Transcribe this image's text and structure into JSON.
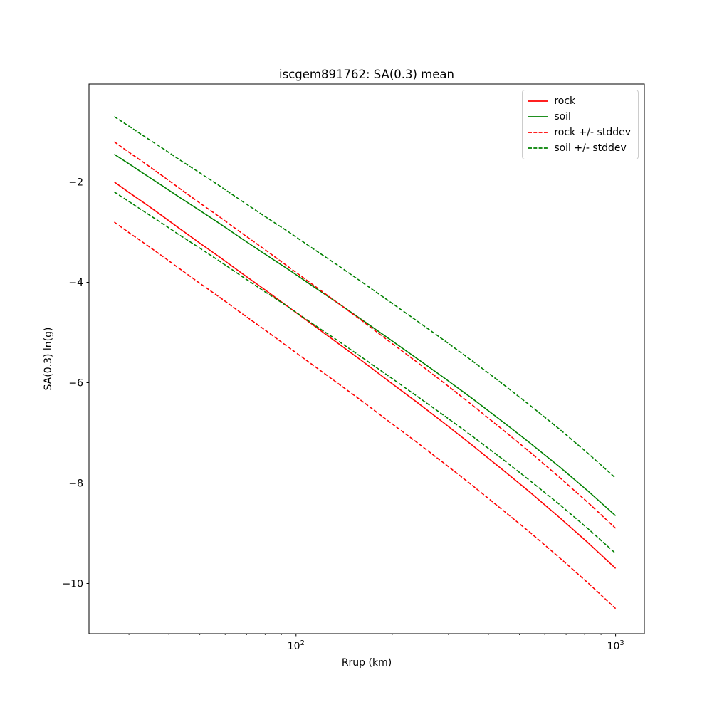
{
  "figure": {
    "title": "iscgem891762: SA(0.3) mean",
    "xlabel": "Rrup (km)",
    "ylabel": "SA(0.3) ln(g)"
  },
  "colors": {
    "rock": "#ff0000",
    "soil": "#008000",
    "axes": "#000000",
    "legend_border": "#cccccc"
  },
  "legend": {
    "items": [
      {
        "label": "rock",
        "color": "#ff0000",
        "dash": "solid"
      },
      {
        "label": "soil",
        "color": "#008000",
        "dash": "solid"
      },
      {
        "label": "rock +/- stddev",
        "color": "#ff0000",
        "dash": "dashed"
      },
      {
        "label": "soil +/- stddev",
        "color": "#008000",
        "dash": "dashed"
      }
    ]
  },
  "chart_data": {
    "type": "line",
    "title": "iscgem891762: SA(0.3) mean",
    "xlabel": "Rrup (km)",
    "ylabel": "SA(0.3) ln(g)",
    "x_scale": "log",
    "y_scale": "linear",
    "grid": false,
    "legend_position": "upper right",
    "xlim": [
      22.5,
      1230
    ],
    "ylim": [
      -11.0,
      -0.05
    ],
    "x": [
      27,
      30,
      34,
      38,
      43,
      50,
      58,
      68,
      80,
      95,
      113,
      135,
      162,
      196,
      238,
      290,
      355,
      436,
      537,
      663,
      820,
      1000
    ],
    "series": [
      {
        "name": "rock-mean",
        "legend_label": "rock",
        "color": "#ff0000",
        "dash": "solid",
        "values": [
          -2.0,
          -2.21,
          -2.45,
          -2.67,
          -2.92,
          -3.22,
          -3.51,
          -3.83,
          -4.15,
          -4.5,
          -4.85,
          -5.21,
          -5.58,
          -5.98,
          -6.38,
          -6.8,
          -7.24,
          -7.7,
          -8.17,
          -8.67,
          -9.19,
          -9.7
        ]
      },
      {
        "name": "soil-mean",
        "legend_label": "soil",
        "color": "#008000",
        "dash": "solid",
        "values": [
          -1.45,
          -1.64,
          -1.87,
          -2.07,
          -2.3,
          -2.57,
          -2.84,
          -3.14,
          -3.44,
          -3.75,
          -4.08,
          -4.41,
          -4.76,
          -5.13,
          -5.51,
          -5.9,
          -6.31,
          -6.74,
          -7.19,
          -7.66,
          -8.16,
          -8.65
        ]
      },
      {
        "name": "rock-plus-stddev",
        "legend_label": "rock +/- stddev",
        "color": "#ff0000",
        "dash": "dashed",
        "values": [
          -1.2,
          -1.41,
          -1.65,
          -1.87,
          -2.12,
          -2.42,
          -2.71,
          -3.03,
          -3.35,
          -3.7,
          -4.05,
          -4.41,
          -4.78,
          -5.18,
          -5.58,
          -6.0,
          -6.44,
          -6.9,
          -7.37,
          -7.87,
          -8.39,
          -8.9
        ]
      },
      {
        "name": "rock-minus-stddev",
        "legend_label": "",
        "color": "#ff0000",
        "dash": "dashed",
        "values": [
          -2.8,
          -3.01,
          -3.25,
          -3.47,
          -3.72,
          -4.02,
          -4.31,
          -4.63,
          -4.95,
          -5.3,
          -5.65,
          -6.01,
          -6.38,
          -6.78,
          -7.18,
          -7.6,
          -8.04,
          -8.5,
          -8.97,
          -9.47,
          -9.99,
          -10.5
        ]
      },
      {
        "name": "soil-plus-stddev",
        "legend_label": "soil +/- stddev",
        "color": "#008000",
        "dash": "dashed",
        "values": [
          -0.7,
          -0.89,
          -1.12,
          -1.32,
          -1.55,
          -1.82,
          -2.09,
          -2.39,
          -2.69,
          -3.0,
          -3.33,
          -3.66,
          -4.01,
          -4.38,
          -4.76,
          -5.15,
          -5.56,
          -5.99,
          -6.44,
          -6.91,
          -7.41,
          -7.9
        ]
      },
      {
        "name": "soil-minus-stddev",
        "legend_label": "",
        "color": "#008000",
        "dash": "dashed",
        "values": [
          -2.2,
          -2.39,
          -2.62,
          -2.82,
          -3.05,
          -3.32,
          -3.59,
          -3.89,
          -4.19,
          -4.5,
          -4.83,
          -5.16,
          -5.51,
          -5.88,
          -6.26,
          -6.65,
          -7.06,
          -7.49,
          -7.94,
          -8.41,
          -8.91,
          -9.4
        ]
      }
    ],
    "x_ticks": [
      {
        "value": 100,
        "base": "10",
        "exp": "2"
      },
      {
        "value": 1000,
        "base": "10",
        "exp": "3"
      }
    ],
    "x_minor_ticks": [
      30,
      40,
      50,
      60,
      70,
      80,
      90,
      200,
      300,
      400,
      500,
      600,
      700,
      800,
      900
    ],
    "y_ticks": [
      {
        "value": -2,
        "label": "−2"
      },
      {
        "value": -4,
        "label": "−4"
      },
      {
        "value": -6,
        "label": "−6"
      },
      {
        "value": -8,
        "label": "−8"
      },
      {
        "value": -10,
        "label": "−10"
      }
    ]
  }
}
